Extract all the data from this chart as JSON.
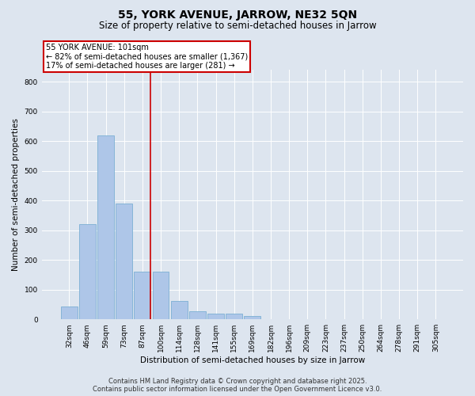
{
  "title": "55, YORK AVENUE, JARROW, NE32 5QN",
  "subtitle": "Size of property relative to semi-detached houses in Jarrow",
  "xlabel": "Distribution of semi-detached houses by size in Jarrow",
  "ylabel": "Number of semi-detached properties",
  "categories": [
    "32sqm",
    "46sqm",
    "59sqm",
    "73sqm",
    "87sqm",
    "100sqm",
    "114sqm",
    "128sqm",
    "141sqm",
    "155sqm",
    "169sqm",
    "182sqm",
    "196sqm",
    "209sqm",
    "223sqm",
    "237sqm",
    "250sqm",
    "264sqm",
    "278sqm",
    "291sqm",
    "305sqm"
  ],
  "values": [
    42,
    320,
    620,
    390,
    160,
    160,
    62,
    28,
    18,
    18,
    12,
    0,
    0,
    0,
    0,
    0,
    0,
    0,
    0,
    0,
    0
  ],
  "bar_color": "#aec6e8",
  "bar_edge_color": "#7bafd4",
  "red_line_after_index": 4,
  "marker_label": "55 YORK AVENUE: 101sqm",
  "marker_line_color": "#cc0000",
  "marker_box_color": "#cc0000",
  "annotation_line1": "← 82% of semi-detached houses are smaller (1,367)",
  "annotation_line2": "17% of semi-detached houses are larger (281) →",
  "ylim": [
    0,
    840
  ],
  "yticks": [
    0,
    100,
    200,
    300,
    400,
    500,
    600,
    700,
    800
  ],
  "background_color": "#dde5ef",
  "plot_background_color": "#dde5ef",
  "footer_line1": "Contains HM Land Registry data © Crown copyright and database right 2025.",
  "footer_line2": "Contains public sector information licensed under the Open Government Licence v3.0.",
  "title_fontsize": 10,
  "subtitle_fontsize": 8.5,
  "axis_label_fontsize": 7.5,
  "tick_fontsize": 6.5,
  "annotation_fontsize": 7,
  "footer_fontsize": 6
}
